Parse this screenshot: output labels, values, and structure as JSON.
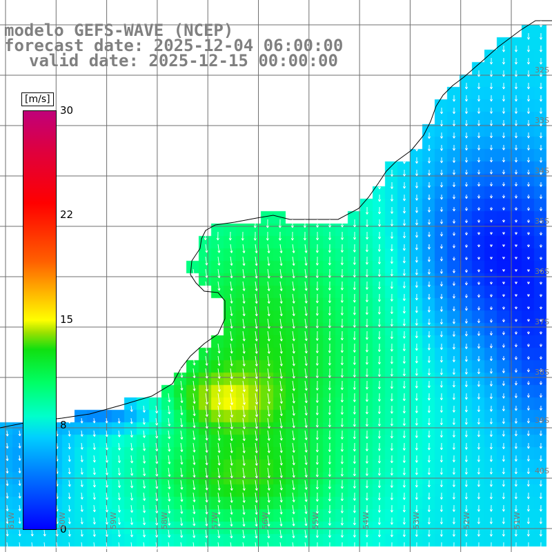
{
  "title": {
    "model": "modelo GEFS-WAVE (NCEP)",
    "forecast": "forecast date: 2025-12-04 06:00:00",
    "valid": "valid date: 2025-12-15 00:00:00"
  },
  "colorbar": {
    "unit": "[m/s]",
    "ticks": [
      "30",
      "22",
      "15",
      "8",
      "0"
    ],
    "tick_values": [
      30,
      22,
      15,
      8,
      0
    ],
    "range": [
      0,
      30
    ]
  },
  "grid": {
    "lat_labels": [
      "32S",
      "33S",
      "34S",
      "35S",
      "36S",
      "37S",
      "38S",
      "39S",
      "40S"
    ],
    "lon_labels": [
      "61W",
      "60W",
      "59W",
      "58W",
      "57W",
      "56W",
      "55W",
      "54W",
      "53W",
      "52W",
      "51W"
    ]
  },
  "colors": {
    "land": "#ffffff",
    "coast": "#000000",
    "grid": "#6e6e6e",
    "arrow": "#ffffff",
    "label": "#808080"
  }
}
